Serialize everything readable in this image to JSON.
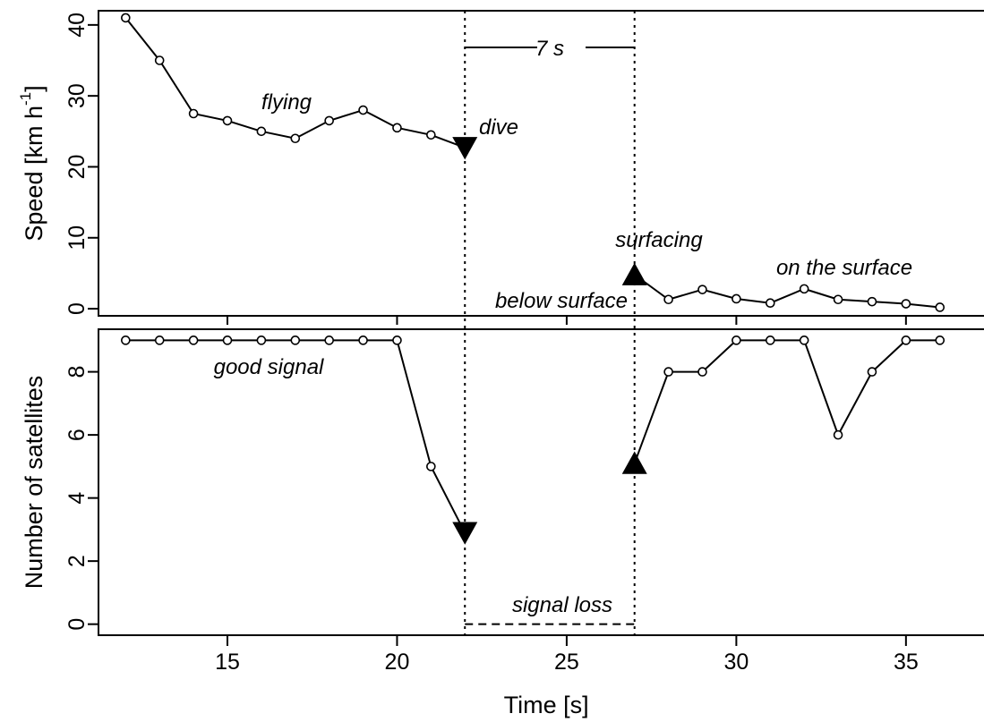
{
  "chart_data": [
    {
      "type": "line",
      "panel": "top",
      "ylabel": "Speed [km h",
      "ylabel_sup": "-1",
      "ylabel_close": "]",
      "xlim": [
        11.2,
        37.3
      ],
      "ylim": [
        -1,
        42
      ],
      "yticks": [
        0,
        10,
        20,
        30,
        40
      ],
      "x": [
        12,
        13,
        14,
        15,
        16,
        17,
        18,
        19,
        20,
        21
      ],
      "values": [
        41,
        35,
        27.5,
        26.5,
        25,
        24,
        26.5,
        28,
        25.5,
        24.5
      ],
      "dive": {
        "x": 22,
        "y": 22.7,
        "label": "dive"
      },
      "surfacing": {
        "x": 27,
        "y": 4.8,
        "label": "surfacing"
      },
      "after_x": [
        28,
        29,
        30,
        31,
        32,
        33,
        34,
        35,
        36
      ],
      "after_values": [
        1.3,
        2.7,
        1.4,
        0.8,
        2.8,
        1.3,
        1.0,
        0.7,
        0.2
      ],
      "annotations": {
        "flying": "flying",
        "interval": "7 s",
        "below_surface": "below surface",
        "on_surface": "on the surface"
      },
      "grid": false
    },
    {
      "type": "line",
      "panel": "bottom",
      "xlabel": "Time [s]",
      "ylabel": "Number of satellites",
      "xlim": [
        11.2,
        37.3
      ],
      "ylim": [
        -0.35,
        9.35
      ],
      "xticks": [
        15,
        20,
        25,
        30,
        35
      ],
      "yticks": [
        0,
        2,
        4,
        6,
        8
      ],
      "x": [
        12,
        13,
        14,
        15,
        16,
        17,
        18,
        19,
        20,
        21
      ],
      "values": [
        9,
        9,
        9,
        9,
        9,
        9,
        9,
        9,
        9,
        5
      ],
      "dive": {
        "x": 22,
        "y": 2.9
      },
      "surfacing": {
        "x": 27,
        "y": 5.1
      },
      "after_x": [
        28,
        29,
        30,
        31,
        32,
        33,
        34,
        35,
        36
      ],
      "after_values": [
        8,
        8,
        9,
        9,
        9,
        6,
        8,
        9,
        9
      ],
      "signal_loss": {
        "x": [
          22,
          27
        ],
        "y": 0,
        "label": "signal loss"
      },
      "annotations": {
        "good_signal": "good signal"
      },
      "grid": false
    }
  ]
}
